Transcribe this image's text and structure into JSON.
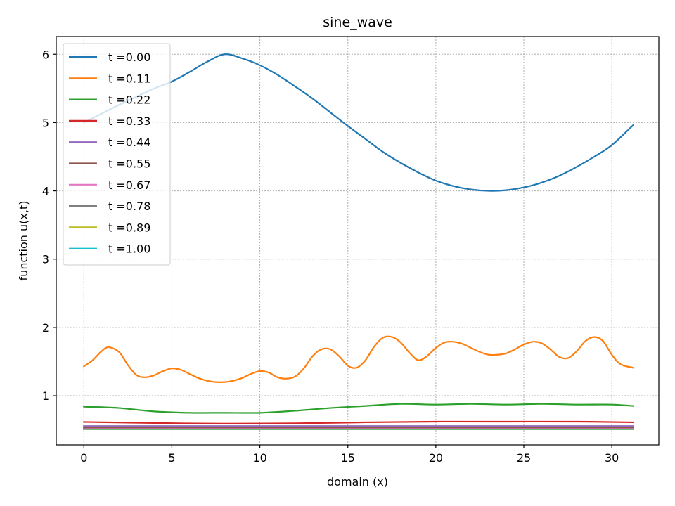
{
  "chart_data": {
    "type": "line",
    "title": "sine_wave",
    "xlabel": "domain (x)",
    "ylabel": "function u(x,t)",
    "xlim": [
      -1.57,
      32.67
    ],
    "ylim": [
      0.28,
      6.26
    ],
    "xticks": [
      0,
      5,
      10,
      15,
      20,
      25,
      30
    ],
    "yticks": [
      1,
      2,
      3,
      4,
      5,
      6
    ],
    "grid": true,
    "grid_style": "dotted",
    "legend_position": "top-left",
    "series": [
      {
        "name": "t =0.00",
        "color": "#1f77b4",
        "x": [
          0,
          1,
          2,
          3,
          4,
          5,
          6,
          7,
          8,
          9,
          10,
          11,
          12,
          13,
          14,
          15,
          16,
          17,
          18,
          19,
          20,
          21,
          22,
          23,
          24,
          25,
          26,
          27,
          28,
          29,
          30,
          31.2
        ],
        "y": [
          5.0,
          5.13,
          5.26,
          5.38,
          5.5,
          5.6,
          5.74,
          5.89,
          6.0,
          5.94,
          5.84,
          5.7,
          5.53,
          5.35,
          5.15,
          4.95,
          4.76,
          4.57,
          4.41,
          4.27,
          4.15,
          4.07,
          4.02,
          4.0,
          4.01,
          4.05,
          4.12,
          4.22,
          4.35,
          4.5,
          4.67,
          4.96
        ]
      },
      {
        "name": "t =0.11",
        "color": "#ff7f0e",
        "x": [
          0,
          0.5,
          1,
          1.4,
          2,
          2.5,
          3,
          3.5,
          4,
          4.5,
          5,
          5.5,
          6,
          6.5,
          7,
          7.5,
          8,
          8.5,
          9,
          9.5,
          10,
          10.5,
          11,
          11.5,
          12,
          12.5,
          13,
          13.5,
          14,
          14.5,
          15,
          15.5,
          16,
          16.5,
          17,
          17.5,
          18,
          18.5,
          19,
          19.5,
          20,
          20.5,
          21,
          21.5,
          22,
          22.5,
          23,
          23.5,
          24,
          24.5,
          25,
          25.5,
          26,
          26.5,
          27,
          27.5,
          28,
          28.5,
          29,
          29.5,
          30,
          30.5,
          31.2
        ],
        "y": [
          1.43,
          1.52,
          1.65,
          1.71,
          1.64,
          1.45,
          1.3,
          1.27,
          1.3,
          1.36,
          1.4,
          1.38,
          1.32,
          1.26,
          1.22,
          1.2,
          1.2,
          1.22,
          1.26,
          1.32,
          1.36,
          1.34,
          1.27,
          1.25,
          1.28,
          1.4,
          1.58,
          1.68,
          1.68,
          1.58,
          1.44,
          1.41,
          1.52,
          1.72,
          1.85,
          1.86,
          1.78,
          1.63,
          1.52,
          1.58,
          1.7,
          1.78,
          1.79,
          1.76,
          1.7,
          1.64,
          1.6,
          1.6,
          1.62,
          1.68,
          1.75,
          1.79,
          1.77,
          1.68,
          1.57,
          1.55,
          1.65,
          1.8,
          1.86,
          1.8,
          1.6,
          1.46,
          1.41
        ]
      },
      {
        "name": "t =0.22",
        "color": "#2ca02c",
        "x": [
          0,
          2,
          4,
          6,
          8,
          10,
          12,
          14,
          16,
          18,
          20,
          22,
          24,
          26,
          28,
          30,
          31.2
        ],
        "y": [
          0.84,
          0.82,
          0.77,
          0.75,
          0.75,
          0.75,
          0.78,
          0.82,
          0.85,
          0.88,
          0.87,
          0.88,
          0.87,
          0.88,
          0.87,
          0.87,
          0.85
        ]
      },
      {
        "name": "t =0.33",
        "color": "#d62728",
        "x": [
          0,
          4,
          8,
          12,
          16,
          20,
          24,
          28,
          31.2
        ],
        "y": [
          0.615,
          0.6,
          0.59,
          0.595,
          0.61,
          0.62,
          0.62,
          0.62,
          0.61
        ]
      },
      {
        "name": "t =0.44",
        "color": "#9467bd",
        "x": [
          0,
          31.2
        ],
        "y": [
          0.555,
          0.555
        ]
      },
      {
        "name": "t =0.55",
        "color": "#8c564b",
        "x": [
          0,
          31.2
        ],
        "y": [
          0.535,
          0.535
        ]
      },
      {
        "name": "t =0.67",
        "color": "#e377c2",
        "x": [
          0,
          31.2
        ],
        "y": [
          0.525,
          0.525
        ]
      },
      {
        "name": "t =0.78",
        "color": "#7f7f7f",
        "x": [
          0,
          31.2
        ],
        "y": [
          0.518,
          0.518
        ]
      },
      {
        "name": "t =0.89",
        "color": "#bcbd22",
        "x": [
          0,
          31.2
        ],
        "y": [
          0.512,
          0.512
        ]
      },
      {
        "name": "t =1.00",
        "color": "#17becf",
        "x": [
          0,
          31.2
        ],
        "y": [
          0.507,
          0.507
        ]
      }
    ]
  }
}
